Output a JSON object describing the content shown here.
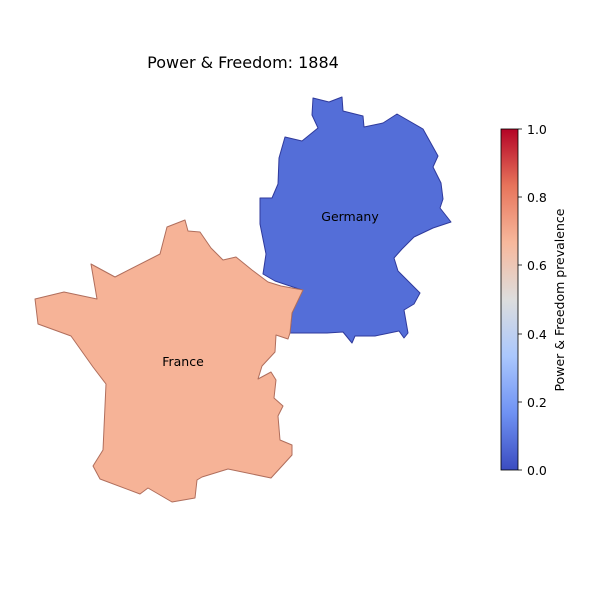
{
  "chart_data": {
    "type": "choropleth",
    "title": "Power & Freedom: 1884",
    "regions": [
      {
        "name": "France",
        "value": 0.68
      },
      {
        "name": "Germany",
        "value": 0.08
      }
    ],
    "colorbar": {
      "label": "Power & Freedom prevalence",
      "range": [
        0.0,
        1.0
      ],
      "ticks": [
        "0.0",
        "0.2",
        "0.4",
        "0.6",
        "0.8",
        "1.0"
      ],
      "colormap": [
        "#3b4cc0",
        "#6f92f3",
        "#aac7fd",
        "#dddddd",
        "#f7b89c",
        "#e7745b",
        "#b40426"
      ]
    }
  }
}
